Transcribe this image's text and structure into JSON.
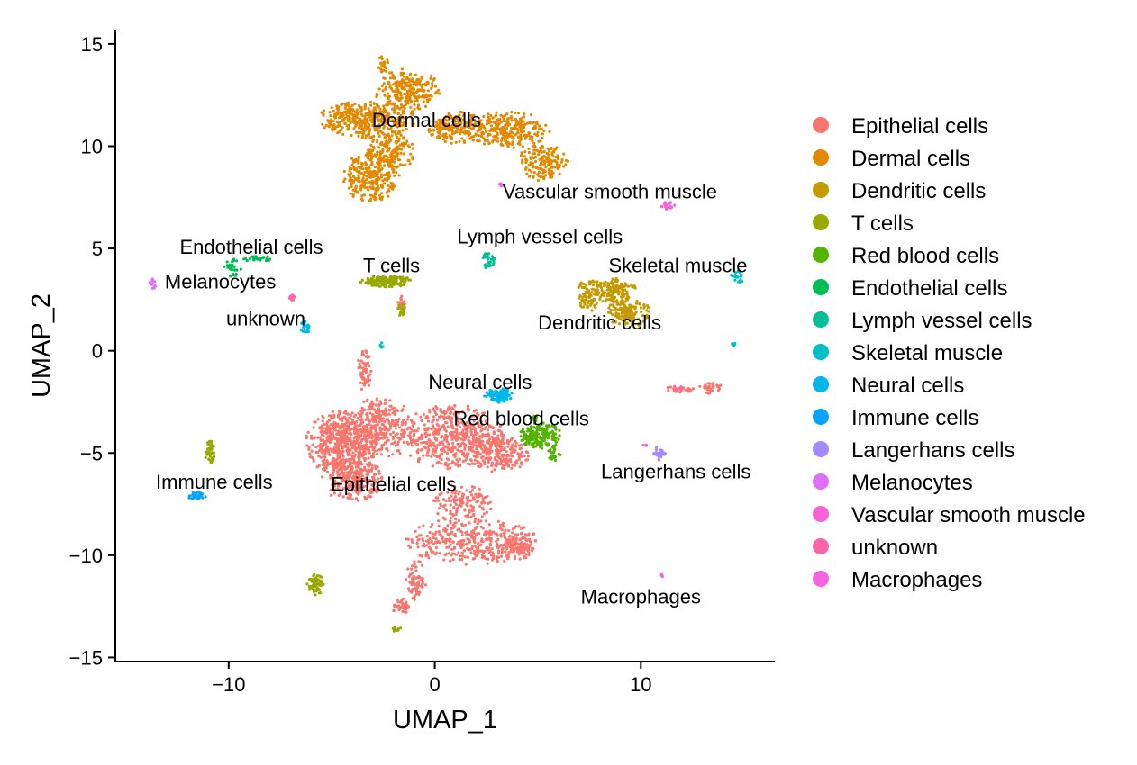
{
  "chart_data": {
    "type": "scatter",
    "title": "",
    "xlabel": "UMAP_1",
    "ylabel": "UMAP_2",
    "xlim": [
      -15.5,
      16.5
    ],
    "ylim": [
      -15.2,
      15.7
    ],
    "x_ticks": [
      -10,
      0,
      10
    ],
    "x_tick_labels": [
      "−10",
      "0",
      "10"
    ],
    "y_ticks": [
      15,
      10,
      5,
      0,
      -5,
      -10,
      -15
    ],
    "y_tick_labels": [
      "15",
      "10",
      "5",
      "0",
      "−5",
      "−10",
      "−15"
    ],
    "grid": false,
    "legend_position": "right",
    "series": [
      {
        "name": "Epithelial cells",
        "color": "#F8766D",
        "points": [
          {
            "x": -4.5,
            "y": -4.5,
            "rx": 1.8,
            "ry": 1.6,
            "n": 520
          },
          {
            "x": -4.0,
            "y": -6.2,
            "rx": 1.5,
            "ry": 1.2,
            "n": 280
          },
          {
            "x": -2.6,
            "y": -3.8,
            "rx": 1.6,
            "ry": 1.6,
            "n": 300
          },
          {
            "x": 0.8,
            "y": -4.2,
            "rx": 2.6,
            "ry": 1.6,
            "n": 500
          },
          {
            "x": 3.0,
            "y": -5.0,
            "rx": 1.6,
            "ry": 1.0,
            "n": 220
          },
          {
            "x": 1.8,
            "y": -9.3,
            "rx": 3.2,
            "ry": 1.2,
            "n": 380
          },
          {
            "x": 1.4,
            "y": -7.5,
            "rx": 1.5,
            "ry": 0.9,
            "n": 140
          },
          {
            "x": 4.0,
            "y": -9.6,
            "rx": 0.9,
            "ry": 0.6,
            "n": 80
          },
          {
            "x": -0.9,
            "y": -11.2,
            "rx": 0.5,
            "ry": 1.0,
            "n": 70
          },
          {
            "x": -1.6,
            "y": -12.5,
            "rx": 0.5,
            "ry": 0.4,
            "n": 40
          },
          {
            "x": -3.4,
            "y": -1.0,
            "rx": 0.35,
            "ry": 1.1,
            "n": 60
          },
          {
            "x": 13.4,
            "y": -1.8,
            "rx": 0.6,
            "ry": 0.3,
            "n": 35
          },
          {
            "x": 11.8,
            "y": -1.9,
            "rx": 0.8,
            "ry": 0.15,
            "n": 25
          },
          {
            "x": -1.6,
            "y": 2.4,
            "rx": 0.2,
            "ry": 0.4,
            "n": 15
          }
        ]
      },
      {
        "name": "Dermal cells",
        "color": "#E38900",
        "points": [
          {
            "x": -3.3,
            "y": 11.3,
            "rx": 2.4,
            "ry": 0.9,
            "n": 360
          },
          {
            "x": -3.1,
            "y": 8.5,
            "rx": 1.4,
            "ry": 1.3,
            "n": 280
          },
          {
            "x": -1.3,
            "y": 12.7,
            "rx": 1.6,
            "ry": 1.1,
            "n": 240
          },
          {
            "x": -2.1,
            "y": 9.8,
            "rx": 1.2,
            "ry": 1.0,
            "n": 160
          },
          {
            "x": 1.0,
            "y": 10.9,
            "rx": 1.4,
            "ry": 0.8,
            "n": 180
          },
          {
            "x": 3.6,
            "y": 10.8,
            "rx": 2.0,
            "ry": 0.9,
            "n": 260
          },
          {
            "x": 5.2,
            "y": 9.2,
            "rx": 1.3,
            "ry": 0.9,
            "n": 160
          },
          {
            "x": -2.5,
            "y": 14.0,
            "rx": 0.3,
            "ry": 0.4,
            "n": 20
          }
        ]
      },
      {
        "name": "Dendritic cells",
        "color": "#C49A00",
        "points": [
          {
            "x": 8.3,
            "y": 3.0,
            "rx": 1.5,
            "ry": 0.6,
            "n": 160
          },
          {
            "x": 9.4,
            "y": 1.9,
            "rx": 1.0,
            "ry": 0.8,
            "n": 150
          },
          {
            "x": 7.4,
            "y": 2.4,
            "rx": 0.5,
            "ry": 0.5,
            "n": 40
          }
        ]
      },
      {
        "name": "T cells",
        "color": "#99A800",
        "points": [
          {
            "x": -2.4,
            "y": 3.4,
            "rx": 1.3,
            "ry": 0.3,
            "n": 180
          },
          {
            "x": -1.6,
            "y": 2.0,
            "rx": 0.2,
            "ry": 0.35,
            "n": 20
          },
          {
            "x": -10.9,
            "y": -5.0,
            "rx": 0.25,
            "ry": 0.6,
            "n": 40
          },
          {
            "x": -5.8,
            "y": -11.4,
            "rx": 0.4,
            "ry": 0.6,
            "n": 60
          },
          {
            "x": -1.9,
            "y": -13.6,
            "rx": 0.25,
            "ry": 0.12,
            "n": 12
          }
        ]
      },
      {
        "name": "Red blood cells",
        "color": "#53B400",
        "points": [
          {
            "x": 5.1,
            "y": -4.1,
            "rx": 1.0,
            "ry": 0.7,
            "n": 170
          },
          {
            "x": 5.8,
            "y": -5.0,
            "rx": 0.3,
            "ry": 0.4,
            "n": 25
          },
          {
            "x": 4.8,
            "y": -3.3,
            "rx": 0.2,
            "ry": 0.2,
            "n": 10
          }
        ]
      },
      {
        "name": "Endothelial cells",
        "color": "#00BC56",
        "points": [
          {
            "x": -9.8,
            "y": 4.1,
            "rx": 0.45,
            "ry": 0.5,
            "n": 35
          },
          {
            "x": -8.6,
            "y": 4.5,
            "rx": 0.8,
            "ry": 0.15,
            "n": 30
          }
        ]
      },
      {
        "name": "Lymph vessel cells",
        "color": "#00C094",
        "points": [
          {
            "x": 2.6,
            "y": 4.4,
            "rx": 0.35,
            "ry": 0.45,
            "n": 30
          }
        ]
      },
      {
        "name": "Skeletal muscle",
        "color": "#00BFC4",
        "points": [
          {
            "x": 14.7,
            "y": 3.6,
            "rx": 0.35,
            "ry": 0.35,
            "n": 20
          },
          {
            "x": 14.5,
            "y": 0.3,
            "rx": 0.1,
            "ry": 0.1,
            "n": 6
          },
          {
            "x": -2.6,
            "y": 0.2,
            "rx": 0.1,
            "ry": 0.2,
            "n": 6
          }
        ]
      },
      {
        "name": "Neural cells",
        "color": "#00B6EB",
        "points": [
          {
            "x": 3.1,
            "y": -2.2,
            "rx": 0.7,
            "ry": 0.4,
            "n": 90
          },
          {
            "x": -6.3,
            "y": 1.1,
            "rx": 0.25,
            "ry": 0.35,
            "n": 20
          }
        ]
      },
      {
        "name": "Immune cells",
        "color": "#06A4FF",
        "points": [
          {
            "x": -11.6,
            "y": -7.1,
            "rx": 0.5,
            "ry": 0.2,
            "n": 35
          }
        ]
      },
      {
        "name": "Langerhans cells",
        "color": "#A58AFF",
        "points": [
          {
            "x": 10.9,
            "y": -5.0,
            "rx": 0.35,
            "ry": 0.35,
            "n": 30
          }
        ]
      },
      {
        "name": "Melanocytes",
        "color": "#DF70F8",
        "points": [
          {
            "x": -13.7,
            "y": 3.2,
            "rx": 0.15,
            "ry": 0.35,
            "n": 14
          }
        ]
      },
      {
        "name": "Vascular smooth muscle",
        "color": "#FB61D7",
        "points": [
          {
            "x": 11.3,
            "y": 7.1,
            "rx": 0.35,
            "ry": 0.25,
            "n": 18
          },
          {
            "x": 3.2,
            "y": 8.1,
            "rx": 0.1,
            "ry": 0.1,
            "n": 5
          }
        ]
      },
      {
        "name": "unknown",
        "color": "#FF66A8",
        "points": [
          {
            "x": -6.9,
            "y": 2.6,
            "rx": 0.15,
            "ry": 0.2,
            "n": 12
          },
          {
            "x": 11.8,
            "y": -1.8,
            "rx": 0.3,
            "ry": 0.1,
            "n": 8
          }
        ]
      },
      {
        "name": "Macrophages",
        "color": "#F564E3",
        "points": [
          {
            "x": 11.0,
            "y": -11.0,
            "rx": 0.1,
            "ry": 0.08,
            "n": 5
          },
          {
            "x": 10.2,
            "y": -4.6,
            "rx": 0.15,
            "ry": 0.1,
            "n": 6
          }
        ]
      }
    ],
    "annotations": [
      {
        "text": "Dermal cells",
        "x": -0.4,
        "y": 11.3
      },
      {
        "text": "Vascular smooth muscle",
        "x": 8.5,
        "y": 7.8
      },
      {
        "text": "Lymph vessel cells",
        "x": 5.1,
        "y": 5.6
      },
      {
        "text": "Endothelial cells",
        "x": -8.9,
        "y": 5.1
      },
      {
        "text": "T cells",
        "x": -2.1,
        "y": 4.2
      },
      {
        "text": "Skeletal muscle",
        "x": 11.8,
        "y": 4.2
      },
      {
        "text": "Melanocytes",
        "x": -10.4,
        "y": 3.4
      },
      {
        "text": "unknown",
        "x": -8.2,
        "y": 1.6
      },
      {
        "text": "Dendritic cells",
        "x": 8.0,
        "y": 1.4
      },
      {
        "text": "Neural cells",
        "x": 2.2,
        "y": -1.5
      },
      {
        "text": "Red blood cells",
        "x": 4.2,
        "y": -3.3
      },
      {
        "text": "Langerhans cells",
        "x": 11.7,
        "y": -5.9
      },
      {
        "text": "Immune cells",
        "x": -10.7,
        "y": -6.4
      },
      {
        "text": "Epithelial cells",
        "x": -2.0,
        "y": -6.5
      },
      {
        "text": "Macrophages",
        "x": 10.0,
        "y": -12.0
      }
    ]
  }
}
